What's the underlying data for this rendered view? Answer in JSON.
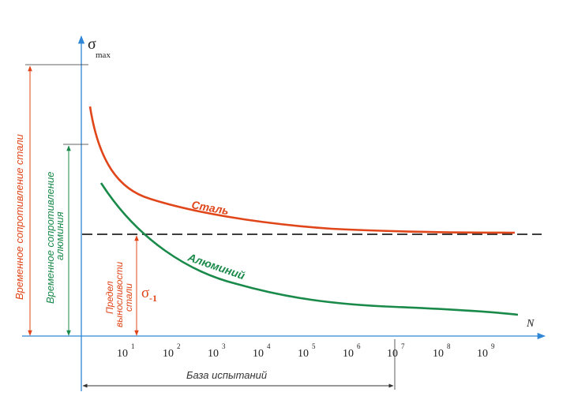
{
  "axes": {
    "y_symbol": "σ",
    "y_subscript": "max",
    "x_symbol": "N"
  },
  "ticks": [
    {
      "base": "10",
      "exp": "1"
    },
    {
      "base": "10",
      "exp": "2"
    },
    {
      "base": "10",
      "exp": "3"
    },
    {
      "base": "10",
      "exp": "4"
    },
    {
      "base": "10",
      "exp": "5"
    },
    {
      "base": "10",
      "exp": "6"
    },
    {
      "base": "10",
      "exp": "7"
    },
    {
      "base": "10",
      "exp": "8"
    },
    {
      "base": "10",
      "exp": "9"
    }
  ],
  "curves": {
    "steel_label": "Сталь",
    "aluminium_label": "Алюминий"
  },
  "annotations": {
    "steel_strength": "Временное сопротивление стали",
    "aluminium_strength_line1": "Временное сопротивление",
    "aluminium_strength_line2": "алюминия",
    "endurance_line1": "Предел",
    "endurance_line2": "выносливости",
    "endurance_line3": "стали",
    "endurance_symbol": "σ",
    "endurance_subscript": "-1",
    "test_base": "База испытаний"
  },
  "colors": {
    "steel": "#e0461a",
    "aluminium": "#1a8a4a",
    "axis": "#2f86d6",
    "dashed": "#222222"
  }
}
